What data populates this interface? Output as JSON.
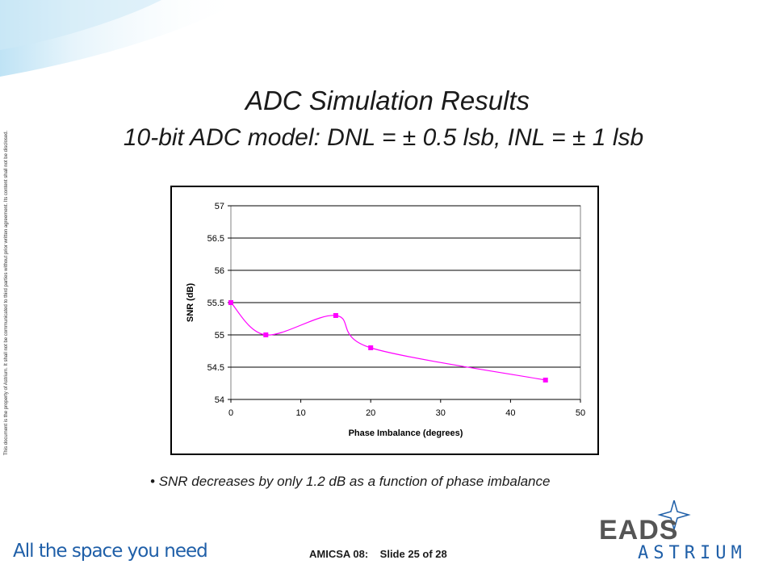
{
  "slide": {
    "title": "ADC Simulation Results",
    "subtitle": "10-bit ADC model: DNL = ± 0.5 lsb, INL = ± 1 lsb",
    "bullet": "SNR decreases by only 1.2 dB as a function of phase imbalance",
    "footer_event": "AMICSA 08:",
    "footer_slide": "Slide 25 of 28",
    "side_notice": "This document is the property of Astrium. It shall not be communicated to third parties without prior written agreement. Its content shall not be disclosed.",
    "tagline": "All the space you need",
    "logo_top": "EADS",
    "logo_bottom": "ASTRIUM",
    "colors": {
      "series": "#ff00ff",
      "tagline": "#1f5fa8",
      "logo_blue": "#1f5fa8"
    }
  },
  "chart_data": {
    "type": "line",
    "title": "",
    "xlabel": "Phase Imbalance (degrees)",
    "ylabel": "SNR (dB)",
    "xlim": [
      0,
      50
    ],
    "ylim": [
      54,
      57
    ],
    "xticks": [
      0,
      10,
      20,
      30,
      40,
      50
    ],
    "yticks": [
      54,
      54.5,
      55,
      55.5,
      56,
      56.5,
      57
    ],
    "xtick_labels": [
      "0",
      "10",
      "20",
      "30",
      "40",
      "50"
    ],
    "ytick_labels": [
      "54",
      "54.5",
      "55",
      "55.5",
      "56",
      "56.5",
      "57"
    ],
    "grid": "horizontal",
    "smooth": true,
    "series": [
      {
        "x": [
          0,
          5,
          15,
          20,
          45
        ],
        "y": [
          55.5,
          55.0,
          55.3,
          54.8,
          54.3
        ],
        "color": "#ff00ff",
        "marker": "square"
      }
    ]
  }
}
